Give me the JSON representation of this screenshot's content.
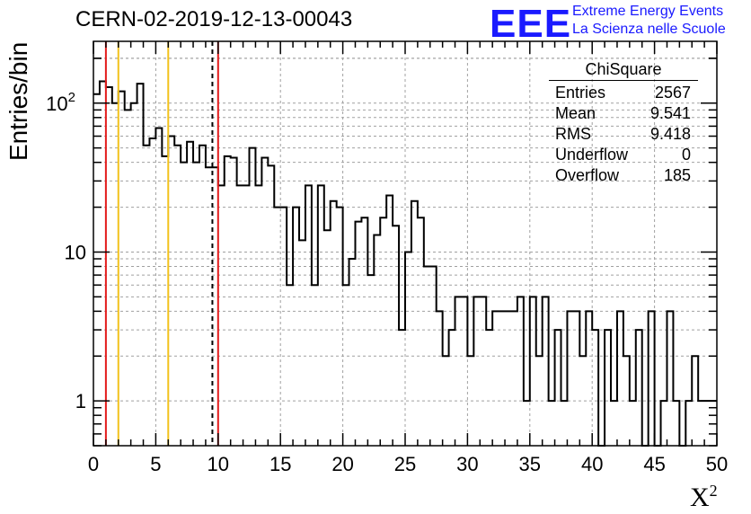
{
  "header": {
    "title": "CERN-02-2019-12-13-00043",
    "brand": "EEE",
    "brand_line1": "Extreme Energy Events",
    "brand_line2": "La Scienza nelle Scuole"
  },
  "stats_box": {
    "title": "ChiSquare",
    "rows": [
      {
        "label": "Entries",
        "value": "2567"
      },
      {
        "label": "Mean",
        "value": "9.541"
      },
      {
        "label": "RMS",
        "value": "9.418"
      },
      {
        "label": "Underflow",
        "value": "0"
      },
      {
        "label": "Overflow",
        "value": "185"
      }
    ]
  },
  "chart_data": {
    "type": "histogram",
    "title": "CERN-02-2019-12-13-00043",
    "xlabel": "X",
    "xlabel_superscript": "2",
    "ylabel": "Entries/bin",
    "xlim": [
      0,
      50
    ],
    "ylim": [
      0.5,
      260
    ],
    "yscale": "log",
    "bin_width": 0.5,
    "grid": true,
    "x_ticks": [
      "0",
      "5",
      "10",
      "15",
      "20",
      "25",
      "30",
      "35",
      "40",
      "45",
      "50"
    ],
    "y_ticks": [
      {
        "value": 1,
        "label": "1"
      },
      {
        "value": 10,
        "label": "10"
      },
      {
        "value": 100,
        "label": "10",
        "exponent": "2"
      }
    ],
    "bin_contents": [
      115,
      140,
      128,
      100,
      120,
      90,
      100,
      135,
      52,
      58,
      68,
      44,
      60,
      52,
      40,
      55,
      40,
      52,
      37,
      37,
      28,
      44,
      43,
      28,
      28,
      50,
      28,
      43,
      38,
      20,
      20,
      6,
      20,
      12,
      28,
      6,
      28,
      14,
      22,
      20,
      6,
      9,
      16,
      17,
      7,
      13,
      17,
      24,
      15,
      3,
      10,
      22,
      17,
      8,
      8,
      4,
      2,
      3,
      5,
      5,
      2,
      5,
      5,
      3,
      4,
      4,
      4,
      4,
      5,
      1,
      5,
      2,
      5,
      1,
      3,
      1,
      4,
      4,
      2,
      4,
      3,
      0,
      3,
      1,
      4,
      2,
      1,
      3,
      0,
      4,
      0,
      1,
      4,
      1,
      0,
      1,
      2,
      1,
      1,
      1
    ],
    "vertical_lines": [
      {
        "x": 1,
        "color": "#e31b1b",
        "style": "solid"
      },
      {
        "x": 2,
        "color": "#f2c21c",
        "style": "solid"
      },
      {
        "x": 6,
        "color": "#f2c21c",
        "style": "solid"
      },
      {
        "x": 9.541,
        "color": "#000000",
        "style": "dashed"
      },
      {
        "x": 10,
        "color": "#e31b1b",
        "style": "solid"
      }
    ]
  }
}
